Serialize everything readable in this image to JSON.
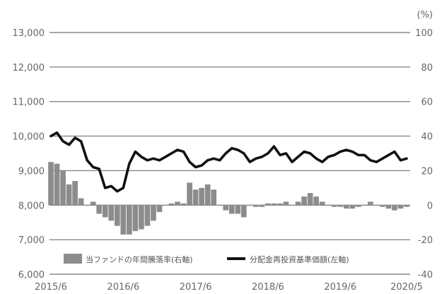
{
  "chart_data": {
    "type": "bar+line",
    "x_tick_labels": [
      "2015/6",
      "2016/6",
      "2017/6",
      "2018/6",
      "2019/6",
      "2020/5"
    ],
    "left_axis": {
      "ticks": [
        6000,
        7000,
        8000,
        9000,
        10000,
        11000,
        12000,
        13000
      ],
      "tick_labels": [
        "6,000",
        "7,000",
        "8,000",
        "9,000",
        "10,000",
        "11,000",
        "12,000",
        "13,000"
      ],
      "ylim": [
        6000,
        13000
      ]
    },
    "right_axis": {
      "unit": "(%)",
      "ticks": [
        -40,
        -20,
        0,
        20,
        40,
        60,
        80,
        100
      ],
      "tick_labels": [
        "-40",
        "-20",
        "0",
        "20",
        "40",
        "60",
        "80",
        "100"
      ],
      "ylim": [
        -40,
        100
      ]
    },
    "grid": true,
    "legend_position": "bottom",
    "series": [
      {
        "name": "当ファンドの年間騰落率(右軸)",
        "type": "bar",
        "axis": "right",
        "color": "#8c8c8c",
        "x": [
          "2015-06",
          "2015-07",
          "2015-08",
          "2015-09",
          "2015-10",
          "2015-11",
          "2015-12",
          "2016-01",
          "2016-02",
          "2016-03",
          "2016-04",
          "2016-05",
          "2016-06",
          "2016-07",
          "2016-08",
          "2016-09",
          "2016-10",
          "2016-11",
          "2016-12",
          "2017-01",
          "2017-02",
          "2017-03",
          "2017-04",
          "2017-05",
          "2017-06",
          "2017-07",
          "2017-08",
          "2017-09",
          "2017-10",
          "2017-11",
          "2017-12",
          "2018-01",
          "2018-02",
          "2018-03",
          "2018-04",
          "2018-05",
          "2018-06",
          "2018-07",
          "2018-08",
          "2018-09",
          "2018-10",
          "2018-11",
          "2018-12",
          "2019-01",
          "2019-02",
          "2019-03",
          "2019-04",
          "2019-05",
          "2019-06",
          "2019-07",
          "2019-08",
          "2019-09",
          "2019-10",
          "2019-11",
          "2019-12",
          "2020-01",
          "2020-02",
          "2020-03",
          "2020-04",
          "2020-05"
        ],
        "values": [
          25,
          24,
          20,
          12,
          14,
          4,
          0,
          2,
          -5,
          -7,
          -9,
          -12,
          -17,
          -17,
          -15,
          -14,
          -12,
          -9,
          -4,
          0,
          1,
          2,
          1,
          13,
          9,
          10,
          12,
          9,
          0,
          -3,
          -5,
          -5,
          -7,
          0,
          -1,
          -1,
          1,
          1,
          1,
          2,
          0,
          2,
          5,
          7,
          5,
          2,
          0,
          -1,
          -1,
          -2,
          -2,
          -1,
          0,
          2,
          0,
          -1,
          -2,
          -3,
          -2,
          -1
        ]
      },
      {
        "name": "分配金再投資基準価額(左軸)",
        "type": "line",
        "axis": "left",
        "color": "#111111",
        "x": [
          "2015-06",
          "2015-07",
          "2015-08",
          "2015-09",
          "2015-10",
          "2015-11",
          "2015-12",
          "2016-01",
          "2016-02",
          "2016-03",
          "2016-04",
          "2016-05",
          "2016-06",
          "2016-07",
          "2016-08",
          "2016-09",
          "2016-10",
          "2016-11",
          "2016-12",
          "2017-01",
          "2017-02",
          "2017-03",
          "2017-04",
          "2017-05",
          "2017-06",
          "2017-07",
          "2017-08",
          "2017-09",
          "2017-10",
          "2017-11",
          "2017-12",
          "2018-01",
          "2018-02",
          "2018-03",
          "2018-04",
          "2018-05",
          "2018-06",
          "2018-07",
          "2018-08",
          "2018-09",
          "2018-10",
          "2018-11",
          "2018-12",
          "2019-01",
          "2019-02",
          "2019-03",
          "2019-04",
          "2019-05",
          "2019-06",
          "2019-07",
          "2019-08",
          "2019-09",
          "2019-10",
          "2019-11",
          "2019-12",
          "2020-01",
          "2020-02",
          "2020-03",
          "2020-04",
          "2020-05"
        ],
        "values": [
          10000,
          10100,
          9850,
          9750,
          9950,
          9850,
          9300,
          9100,
          9050,
          8500,
          8550,
          8400,
          8500,
          9200,
          9550,
          9400,
          9300,
          9350,
          9300,
          9400,
          9500,
          9600,
          9550,
          9250,
          9100,
          9150,
          9300,
          9350,
          9300,
          9500,
          9650,
          9600,
          9500,
          9250,
          9350,
          9400,
          9500,
          9700,
          9450,
          9500,
          9250,
          9400,
          9550,
          9500,
          9350,
          9250,
          9400,
          9450,
          9550,
          9600,
          9550,
          9450,
          9450,
          9300,
          9250,
          9350,
          9450,
          9550,
          9300,
          9350
        ]
      }
    ]
  }
}
